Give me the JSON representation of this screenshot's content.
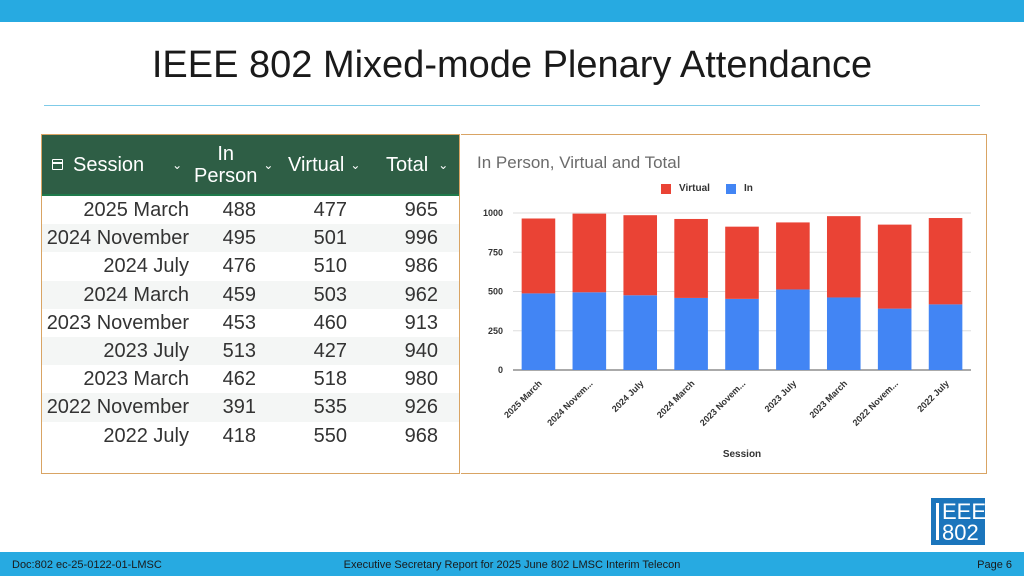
{
  "slide": {
    "title": "IEEE 802 Mixed-mode Plenary Attendance"
  },
  "table": {
    "headers": {
      "session": "Session",
      "in_person_line1": "In",
      "in_person_line2": "Person",
      "virtual": "Virtual",
      "total": "Total"
    },
    "rows": [
      {
        "session": "2025 March",
        "in_person": "488",
        "virtual": "477",
        "total": "965"
      },
      {
        "session": "2024 November",
        "in_person": "495",
        "virtual": "501",
        "total": "996"
      },
      {
        "session": "2024 July",
        "in_person": "476",
        "virtual": "510",
        "total": "986"
      },
      {
        "session": "2024 March",
        "in_person": "459",
        "virtual": "503",
        "total": "962"
      },
      {
        "session": "2023 November",
        "in_person": "453",
        "virtual": "460",
        "total": "913"
      },
      {
        "session": "2023 July",
        "in_person": "513",
        "virtual": "427",
        "total": "940"
      },
      {
        "session": "2023 March",
        "in_person": "462",
        "virtual": "518",
        "total": "980"
      },
      {
        "session": "2022 November",
        "in_person": "391",
        "virtual": "535",
        "total": "926"
      },
      {
        "session": "2022 July",
        "in_person": "418",
        "virtual": "550",
        "total": "968"
      }
    ],
    "header_bg": "#2e5e45"
  },
  "chart_data": {
    "type": "bar",
    "stacked": true,
    "title": "In Person, Virtual and Total",
    "xlabel": "Session",
    "ylabel": "",
    "ylim": [
      0,
      1000
    ],
    "yticks": [
      0,
      250,
      500,
      750,
      1000
    ],
    "categories": [
      "2025 March",
      "2024 Novem...",
      "2024 July",
      "2024 March",
      "2023 Novem...",
      "2023 July",
      "2023 March",
      "2022 Novem...",
      "2022 July"
    ],
    "series": [
      {
        "name": "In",
        "color": "#4285f4",
        "values": [
          488,
          495,
          476,
          459,
          453,
          513,
          462,
          391,
          418
        ]
      },
      {
        "name": "Virtual",
        "color": "#ea4335",
        "values": [
          477,
          501,
          510,
          503,
          460,
          427,
          518,
          535,
          550
        ]
      }
    ],
    "legend": {
      "position": "top",
      "order": [
        "Virtual",
        "In"
      ]
    },
    "grid": true
  },
  "logo": {
    "line1": "EEE",
    "line2": "802"
  },
  "footer": {
    "left": "Doc:802 ec-25-0122-01-LMSC",
    "center": "Executive Secretary Report for 2025 June 802 LMSC Interim Telecon",
    "right": "Page 6"
  },
  "colors": {
    "accent": "#27aae1",
    "logo_bg": "#1b75bc"
  }
}
